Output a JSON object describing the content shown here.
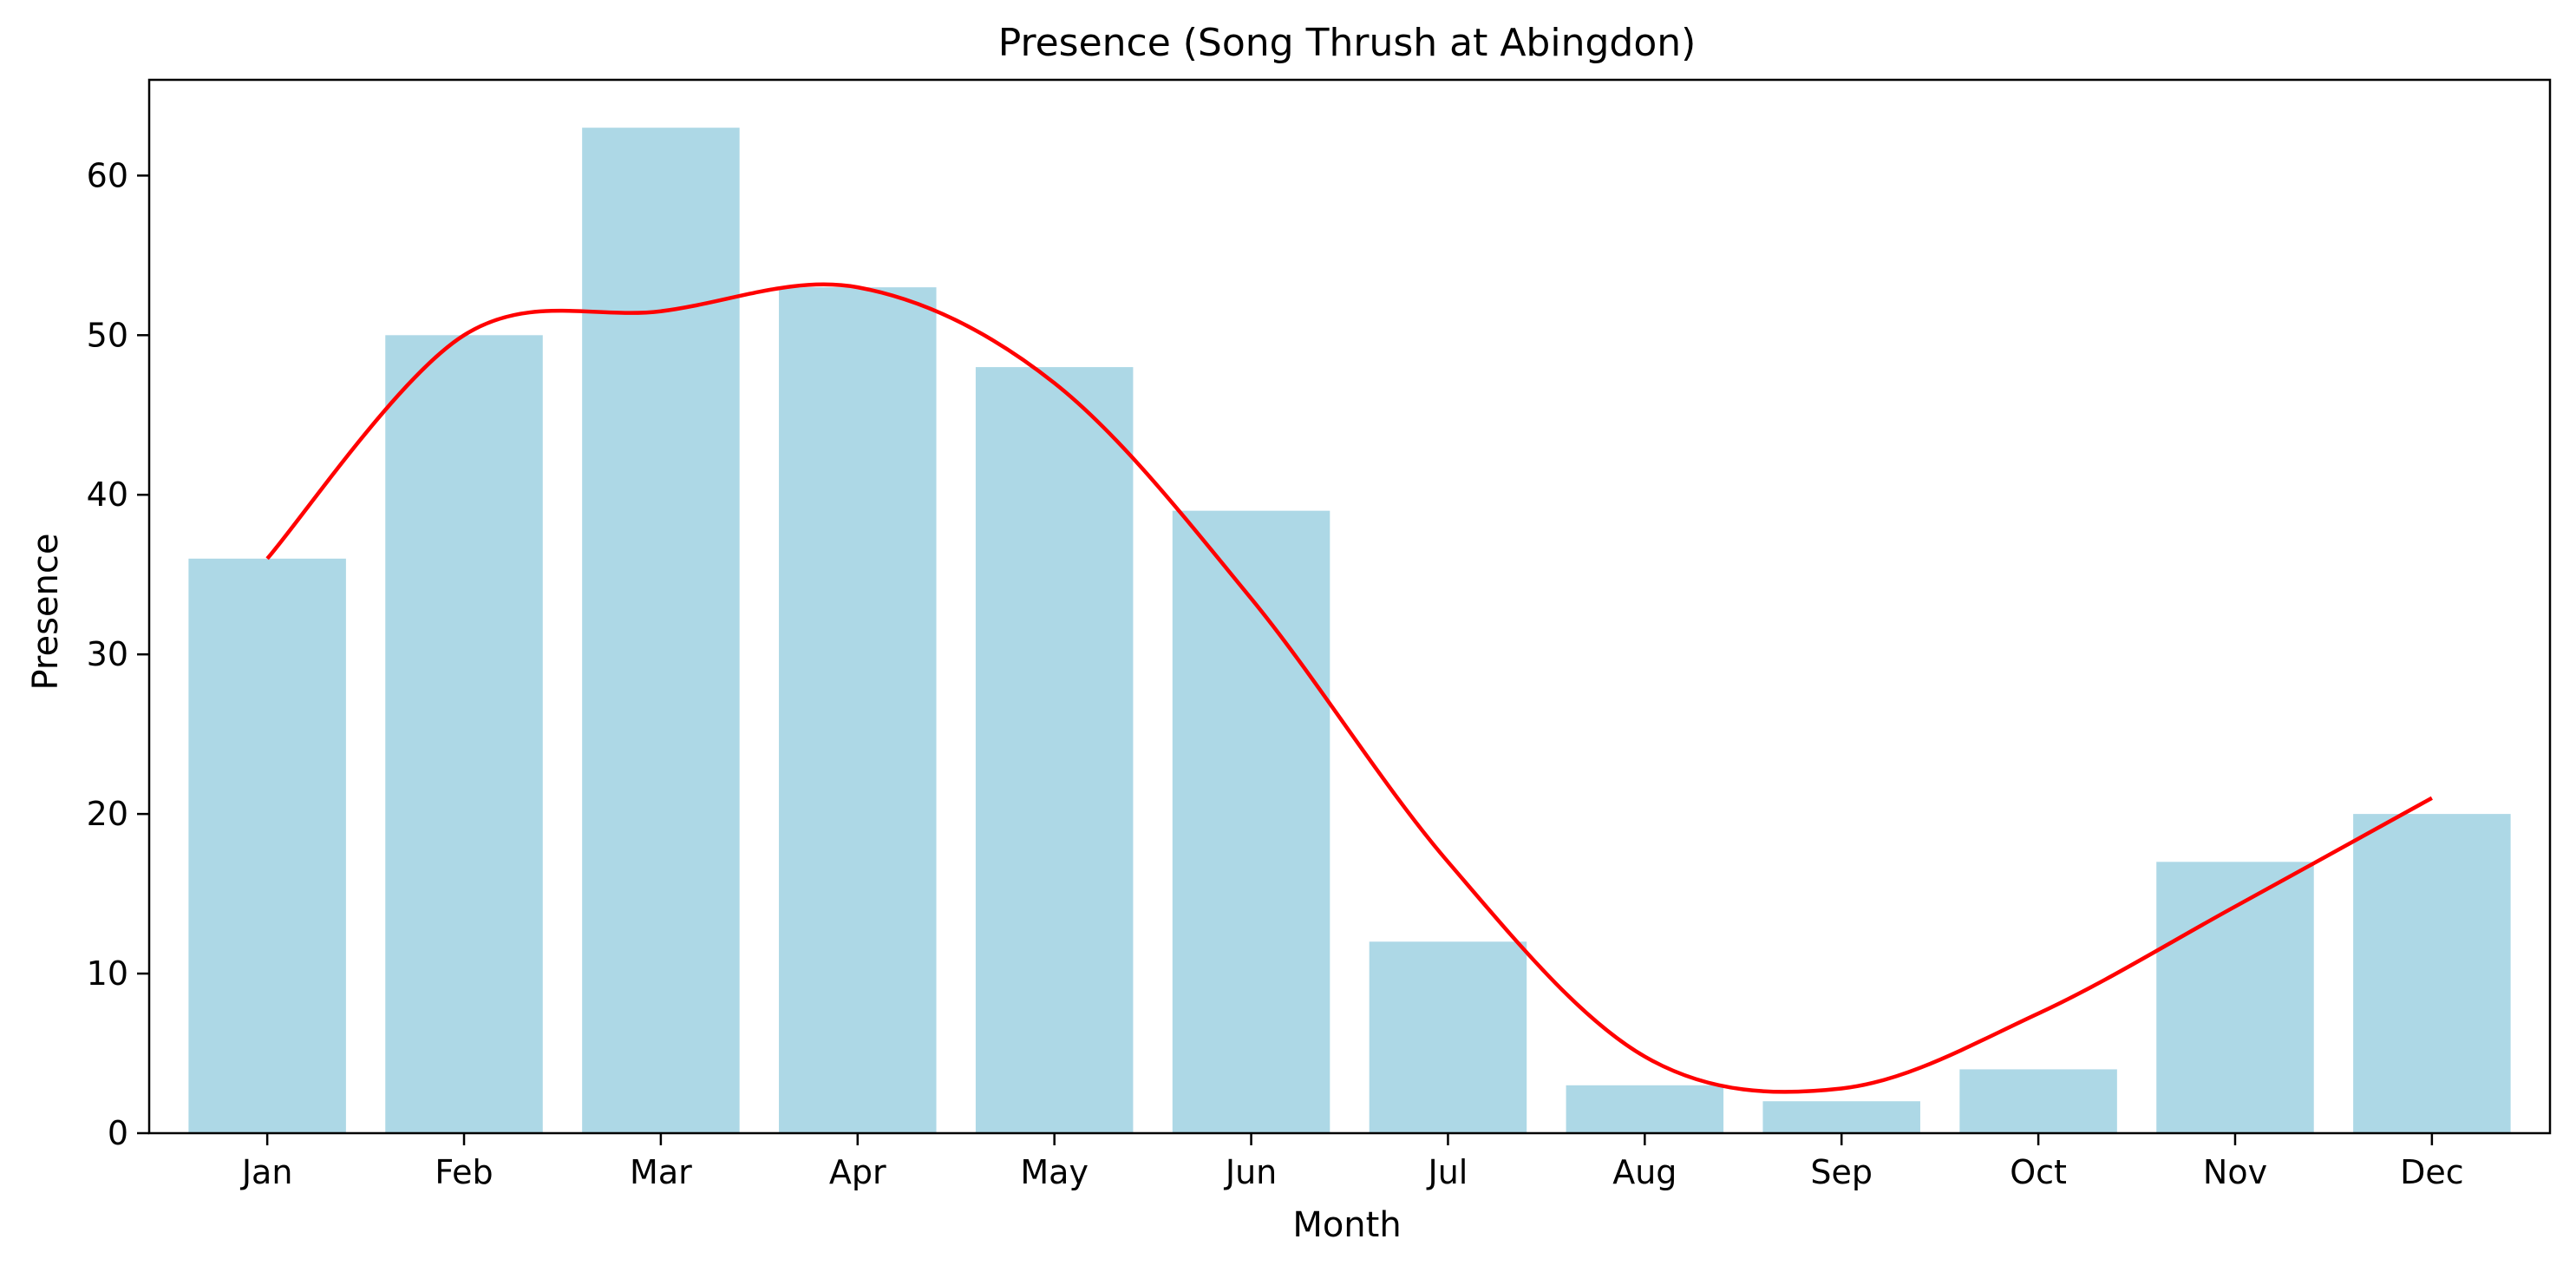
{
  "chart_data": {
    "type": "bar",
    "title": "Presence (Song Thrush at Abingdon)",
    "xlabel": "Month",
    "ylabel": "Presence",
    "categories": [
      "Jan",
      "Feb",
      "Mar",
      "Apr",
      "May",
      "Jun",
      "Jul",
      "Aug",
      "Sep",
      "Oct",
      "Nov",
      "Dec"
    ],
    "values": [
      36,
      50,
      63,
      53,
      48,
      39,
      12,
      3,
      2,
      4,
      17,
      20
    ],
    "trend": {
      "type": "line",
      "values": [
        36,
        50,
        51.5,
        53,
        47,
        33.5,
        17,
        4.8,
        2.8,
        7.5,
        14.2,
        21
      ]
    },
    "ylim": [
      0,
      66
    ],
    "yticks": [
      0,
      10,
      20,
      30,
      40,
      50,
      60
    ],
    "grid": false,
    "legend": "none",
    "colors": {
      "bar": "#add8e6",
      "line": "#ff0000",
      "axis": "#000000"
    }
  }
}
